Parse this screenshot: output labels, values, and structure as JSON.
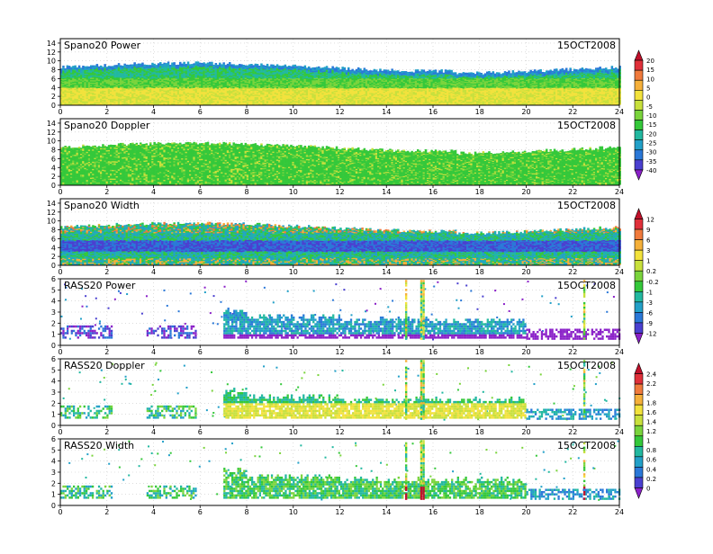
{
  "figure_date": "15OCT2008",
  "x_ticks": [
    0,
    2,
    4,
    6,
    8,
    10,
    12,
    14,
    16,
    18,
    20,
    22,
    24
  ],
  "colorbars": [
    {
      "labels": [
        "20",
        "15",
        "10",
        "5",
        "0",
        "-5",
        "-10",
        "-15",
        "-20",
        "-25",
        "-30",
        "-35",
        "-40"
      ],
      "colors": [
        "#c0102a",
        "#e0303a",
        "#f07a3c",
        "#f5b03a",
        "#f2e23c",
        "#c8e03c",
        "#7ad43c",
        "#34c83a",
        "#22b8a0",
        "#22a0c8",
        "#2a78d8",
        "#4a40d0",
        "#8a20c8"
      ]
    },
    {
      "labels": [
        "12",
        "9",
        "6",
        "3",
        "1",
        "0.2",
        "-0.2",
        "-1",
        "-3",
        "-6",
        "-9",
        "-12"
      ],
      "colors": [
        "#c0102a",
        "#e0303a",
        "#f07a3c",
        "#f5b03a",
        "#f2e23c",
        "#c8e03c",
        "#7ad43c",
        "#34c83a",
        "#22b8a0",
        "#22a0c8",
        "#2a78d8",
        "#4a40d0",
        "#8a20c8"
      ]
    },
    {
      "labels": [
        "2.4",
        "2.2",
        "2",
        "1.8",
        "1.6",
        "1.4",
        "1.2",
        "1",
        "0.8",
        "0.6",
        "0.4",
        "0.2",
        "0"
      ],
      "colors": [
        "#c0102a",
        "#e0303a",
        "#f07a3c",
        "#f5b03a",
        "#f2e23c",
        "#c8e03c",
        "#7ad43c",
        "#34c83a",
        "#22b8a0",
        "#22a0c8",
        "#2a78d8",
        "#4a40d0",
        "#8a20c8"
      ]
    }
  ],
  "chart_data": [
    {
      "type": "heatmap",
      "title": "Spano20 Power",
      "xlim": [
        0,
        24
      ],
      "ylim": [
        0,
        15
      ],
      "y_ticks": [
        0,
        2,
        4,
        6,
        8,
        10,
        12,
        14
      ]
    },
    {
      "type": "heatmap",
      "title": "Spano20 Doppler",
      "xlim": [
        0,
        24
      ],
      "ylim": [
        0,
        15
      ],
      "y_ticks": [
        0,
        2,
        4,
        6,
        8,
        10,
        12,
        14
      ]
    },
    {
      "type": "heatmap",
      "title": "Spano20 Width",
      "xlim": [
        0,
        24
      ],
      "ylim": [
        0,
        15
      ],
      "y_ticks": [
        0,
        2,
        4,
        6,
        8,
        10,
        12,
        14
      ]
    },
    {
      "type": "heatmap",
      "title": "RASS20 Power",
      "xlim": [
        0,
        24
      ],
      "ylim": [
        0,
        6
      ],
      "y_ticks": [
        0,
        1,
        2,
        3,
        4,
        5,
        6
      ]
    },
    {
      "type": "heatmap",
      "title": "RASS20 Doppler",
      "xlim": [
        0,
        24
      ],
      "ylim": [
        0,
        6
      ],
      "y_ticks": [
        0,
        1,
        2,
        3,
        4,
        5,
        6
      ]
    },
    {
      "type": "heatmap",
      "title": "RASS20 Width",
      "xlim": [
        0,
        24
      ],
      "ylim": [
        0,
        6
      ],
      "y_ticks": [
        0,
        1,
        2,
        3,
        4,
        5,
        6
      ]
    }
  ]
}
